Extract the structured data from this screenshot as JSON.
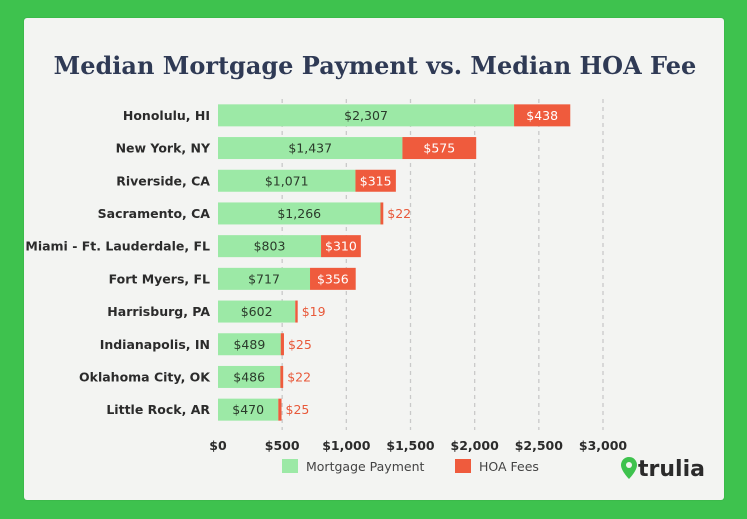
{
  "chart_data": {
    "type": "bar",
    "orientation": "horizontal",
    "stacked": true,
    "title": "Median Mortgage Payment vs. Median HOA Fee",
    "categories": [
      "Honolulu, HI",
      "New York, NY",
      "Riverside, CA",
      "Sacramento, CA",
      "Miami - Ft. Lauderdale, FL",
      "Fort Myers, FL",
      "Harrisburg, PA",
      "Indianapolis, IN",
      "Oklahoma City, OK",
      "Little Rock, AR"
    ],
    "series": [
      {
        "name": "Mortgage Payment",
        "color": "#9ce9a6",
        "values": [
          2307,
          1437,
          1071,
          1266,
          803,
          717,
          602,
          489,
          486,
          470
        ],
        "labels": [
          "$2,307",
          "$1,437",
          "$1,071",
          "$1,266",
          "$803",
          "$717",
          "$602",
          "$489",
          "$486",
          "$470"
        ]
      },
      {
        "name": "HOA Fees",
        "color": "#ef5b3d",
        "values": [
          438,
          575,
          315,
          22,
          310,
          356,
          19,
          25,
          22,
          25
        ],
        "labels": [
          "$438",
          "$575",
          "$315",
          "$22",
          "$310",
          "$356",
          "$19",
          "$25",
          "$22",
          "$25"
        ]
      }
    ],
    "xlim": [
      0,
      3000
    ],
    "xticks": [
      0,
      500,
      1000,
      1500,
      2000,
      2500,
      3000
    ],
    "xtick_labels": [
      "$0",
      "$500",
      "$1,000",
      "$1,500",
      "$2,000",
      "$2,500",
      "$3,000"
    ],
    "grid": "vertical dashed",
    "legend": "bottom-center"
  },
  "brand": {
    "name": "trulia",
    "color": "#3ec24e"
  }
}
